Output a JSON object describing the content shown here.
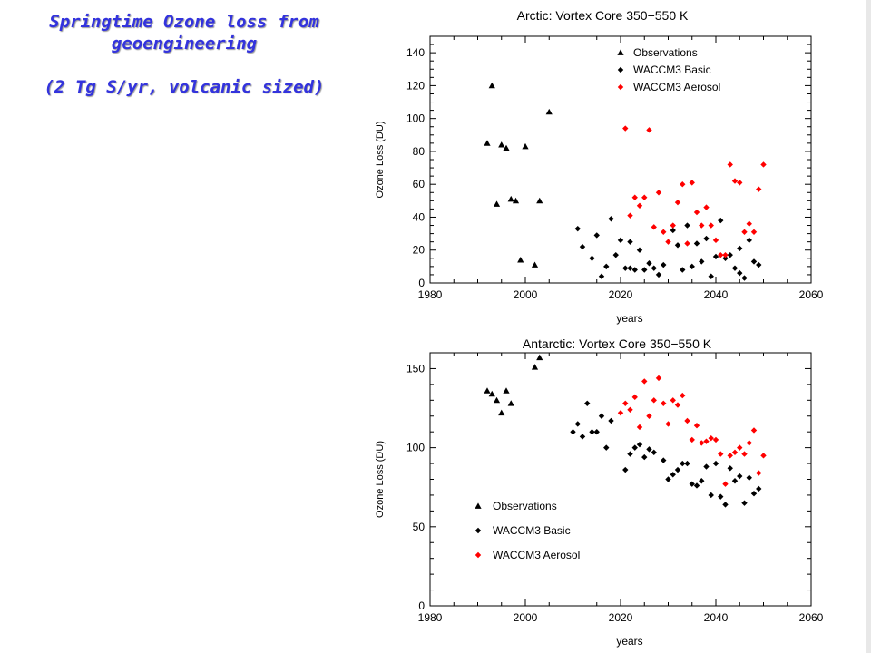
{
  "slide": {
    "title_line1": "Springtime Ozone loss from",
    "title_line2": "geoengineering",
    "subtitle": "(2 Tg S/yr, volcanic sized)"
  },
  "colors": {
    "title": "#3333dd",
    "observations": "#000000",
    "basic": "#000000",
    "aerosol": "#ff0000"
  },
  "chart_data": [
    {
      "type": "scatter",
      "title": "Arctic: Vortex Core 350−550 K",
      "xlabel": "years",
      "ylabel": "Ozone Loss (DU)",
      "xlim": [
        1980,
        2060
      ],
      "ylim": [
        0,
        150
      ],
      "xticks": [
        1980,
        2000,
        2020,
        2040,
        2060
      ],
      "yticks": [
        0,
        20,
        40,
        60,
        80,
        100,
        120,
        140
      ],
      "legend_position": "top-right",
      "series": [
        {
          "name": "Observations",
          "marker": "triangle",
          "color": "#000000",
          "points": [
            [
              1992,
              85
            ],
            [
              1993,
              120
            ],
            [
              1994,
              48
            ],
            [
              1995,
              84
            ],
            [
              1996,
              82
            ],
            [
              1997,
              51
            ],
            [
              1998,
              50
            ],
            [
              1999,
              14
            ],
            [
              2000,
              83
            ],
            [
              2002,
              11
            ],
            [
              2003,
              50
            ],
            [
              2005,
              104
            ]
          ]
        },
        {
          "name": "WACCM3 Basic",
          "marker": "diamond",
          "color": "#000000",
          "points": [
            [
              2011,
              33
            ],
            [
              2012,
              22
            ],
            [
              2014,
              15
            ],
            [
              2015,
              29
            ],
            [
              2016,
              4
            ],
            [
              2017,
              10
            ],
            [
              2018,
              39
            ],
            [
              2019,
              17
            ],
            [
              2020,
              26
            ],
            [
              2021,
              9
            ],
            [
              2022,
              25
            ],
            [
              2022,
              9
            ],
            [
              2023,
              8
            ],
            [
              2024,
              20
            ],
            [
              2025,
              8
            ],
            [
              2026,
              12
            ],
            [
              2027,
              9
            ],
            [
              2028,
              5
            ],
            [
              2029,
              11
            ],
            [
              2031,
              32
            ],
            [
              2032,
              23
            ],
            [
              2033,
              8
            ],
            [
              2034,
              35
            ],
            [
              2035,
              10
            ],
            [
              2036,
              24
            ],
            [
              2037,
              13
            ],
            [
              2038,
              27
            ],
            [
              2039,
              4
            ],
            [
              2040,
              16
            ],
            [
              2041,
              38
            ],
            [
              2042,
              15
            ],
            [
              2043,
              17
            ],
            [
              2044,
              9
            ],
            [
              2045,
              21
            ],
            [
              2045,
              6
            ],
            [
              2046,
              3
            ],
            [
              2047,
              26
            ],
            [
              2048,
              13
            ],
            [
              2049,
              11
            ]
          ]
        },
        {
          "name": "WACCM3 Aerosol",
          "marker": "diamond",
          "color": "#ff0000",
          "points": [
            [
              2021,
              94
            ],
            [
              2022,
              41
            ],
            [
              2023,
              52
            ],
            [
              2024,
              47
            ],
            [
              2025,
              52
            ],
            [
              2026,
              93
            ],
            [
              2027,
              34
            ],
            [
              2028,
              55
            ],
            [
              2029,
              31
            ],
            [
              2030,
              25
            ],
            [
              2031,
              35
            ],
            [
              2032,
              49
            ],
            [
              2033,
              60
            ],
            [
              2034,
              24
            ],
            [
              2035,
              61
            ],
            [
              2036,
              43
            ],
            [
              2037,
              35
            ],
            [
              2038,
              46
            ],
            [
              2039,
              35
            ],
            [
              2040,
              26
            ],
            [
              2041,
              17
            ],
            [
              2042,
              17
            ],
            [
              2043,
              72
            ],
            [
              2044,
              62
            ],
            [
              2045,
              61
            ],
            [
              2046,
              31
            ],
            [
              2047,
              36
            ],
            [
              2048,
              31
            ],
            [
              2049,
              57
            ],
            [
              2050,
              72
            ]
          ]
        }
      ]
    },
    {
      "type": "scatter",
      "title": "Antarctic: Vortex Core 350−550 K",
      "xlabel": "years",
      "ylabel": "Ozone Loss (DU)",
      "xlim": [
        1980,
        2060
      ],
      "ylim": [
        0,
        160
      ],
      "xticks": [
        1980,
        2000,
        2020,
        2040,
        2060
      ],
      "yticks": [
        0,
        50,
        100,
        150
      ],
      "legend_position": "bottom-left",
      "series": [
        {
          "name": "Observations",
          "marker": "triangle",
          "color": "#000000",
          "points": [
            [
              1992,
              136
            ],
            [
              1993,
              134
            ],
            [
              1994,
              130
            ],
            [
              1995,
              122
            ],
            [
              1996,
              136
            ],
            [
              1997,
              128
            ],
            [
              2002,
              151
            ],
            [
              2003,
              157
            ]
          ]
        },
        {
          "name": "WACCM3 Basic",
          "marker": "diamond",
          "color": "#000000",
          "points": [
            [
              2010,
              110
            ],
            [
              2011,
              115
            ],
            [
              2012,
              107
            ],
            [
              2013,
              128
            ],
            [
              2014,
              110
            ],
            [
              2015,
              110
            ],
            [
              2016,
              120
            ],
            [
              2017,
              100
            ],
            [
              2018,
              117
            ],
            [
              2021,
              86
            ],
            [
              2022,
              96
            ],
            [
              2023,
              100
            ],
            [
              2024,
              102
            ],
            [
              2025,
              94
            ],
            [
              2026,
              99
            ],
            [
              2027,
              97
            ],
            [
              2029,
              92
            ],
            [
              2030,
              80
            ],
            [
              2031,
              83
            ],
            [
              2032,
              86
            ],
            [
              2033,
              90
            ],
            [
              2034,
              90
            ],
            [
              2035,
              77
            ],
            [
              2036,
              76
            ],
            [
              2037,
              79
            ],
            [
              2038,
              88
            ],
            [
              2039,
              70
            ],
            [
              2040,
              90
            ],
            [
              2041,
              69
            ],
            [
              2042,
              64
            ],
            [
              2043,
              87
            ],
            [
              2044,
              79
            ],
            [
              2045,
              82
            ],
            [
              2046,
              65
            ],
            [
              2047,
              81
            ],
            [
              2048,
              71
            ],
            [
              2049,
              74
            ]
          ]
        },
        {
          "name": "WACCM3 Aerosol",
          "marker": "diamond",
          "color": "#ff0000",
          "points": [
            [
              2020,
              122
            ],
            [
              2021,
              128
            ],
            [
              2022,
              124
            ],
            [
              2023,
              132
            ],
            [
              2024,
              113
            ],
            [
              2025,
              142
            ],
            [
              2026,
              120
            ],
            [
              2027,
              130
            ],
            [
              2028,
              144
            ],
            [
              2029,
              128
            ],
            [
              2030,
              115
            ],
            [
              2031,
              130
            ],
            [
              2032,
              127
            ],
            [
              2033,
              133
            ],
            [
              2034,
              117
            ],
            [
              2035,
              105
            ],
            [
              2036,
              114
            ],
            [
              2037,
              103
            ],
            [
              2038,
              104
            ],
            [
              2039,
              106
            ],
            [
              2040,
              105
            ],
            [
              2041,
              96
            ],
            [
              2042,
              77
            ],
            [
              2043,
              95
            ],
            [
              2044,
              97
            ],
            [
              2045,
              100
            ],
            [
              2046,
              96
            ],
            [
              2047,
              103
            ],
            [
              2048,
              111
            ],
            [
              2049,
              84
            ],
            [
              2050,
              95
            ]
          ]
        }
      ]
    }
  ]
}
